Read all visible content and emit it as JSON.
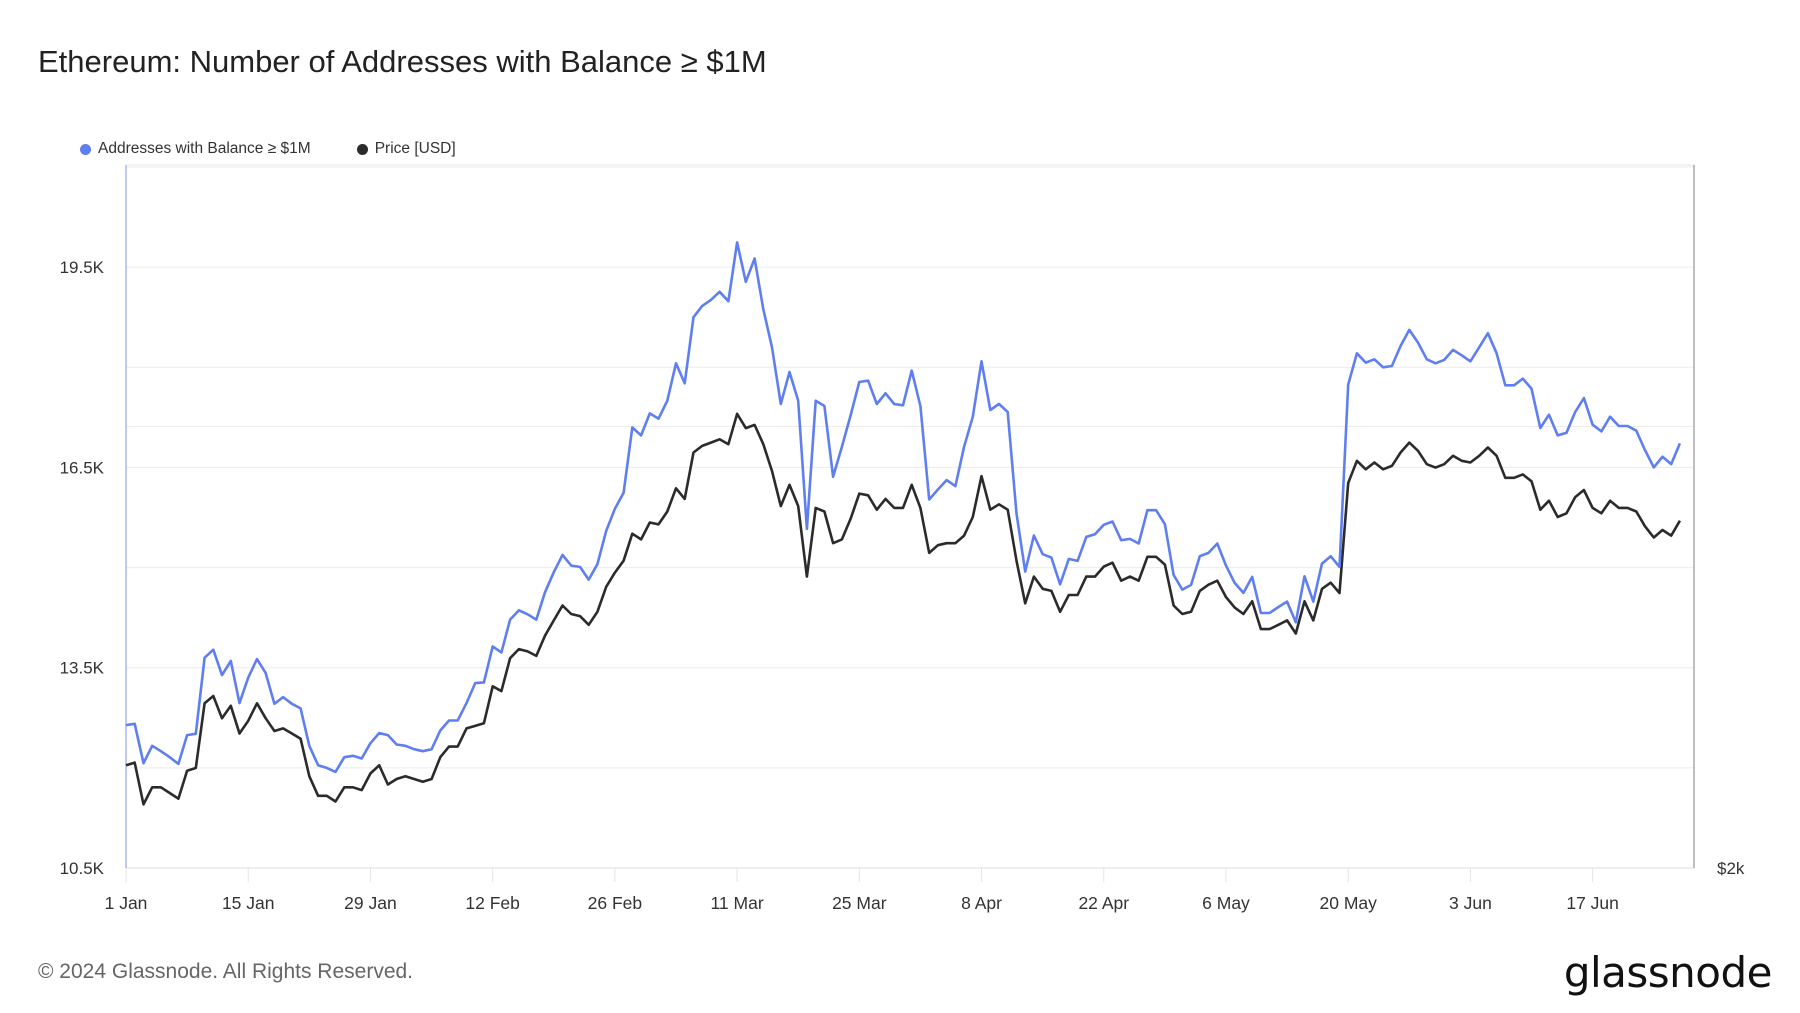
{
  "title": "Ethereum: Number of Addresses with Balance ≥ $1M",
  "footer": {
    "copyright": "© 2024 Glassnode. All Rights Reserved.",
    "logo": "glassnode"
  },
  "chart_data": {
    "type": "line",
    "title": "Ethereum: Number of Addresses with Balance ≥ $1M",
    "legend_position": "top-left",
    "grid": true,
    "x_range": [
      "2024-01-01",
      "2024-06-27"
    ],
    "x_interval": "1d",
    "x_ticks": [
      "1 Jan",
      "15 Jan",
      "29 Jan",
      "12 Feb",
      "26 Feb",
      "11 Mar",
      "25 Mar",
      "8 Apr",
      "22 Apr",
      "6 May",
      "20 May",
      "3 Jun",
      "17 Jun"
    ],
    "y_left": {
      "ticks": [
        "10.5K",
        "13.5K",
        "16.5K",
        "19.5K"
      ],
      "tick_values": [
        10500,
        13500,
        16500,
        19500
      ],
      "ylim": [
        10500,
        21030
      ],
      "scale": "linear"
    },
    "y_right": {
      "ticks": [
        "$2k"
      ],
      "tick_values": [
        2000
      ],
      "ylim": [
        2000,
        6030
      ],
      "scale": "log"
    },
    "series": [
      {
        "name": "Addresses with Balance ≥ $1M",
        "color": "#5f7ff0",
        "axis": "left",
        "values": [
          12640,
          12660,
          12070,
          12330,
          12250,
          12160,
          12060,
          12490,
          12510,
          13650,
          13770,
          13390,
          13600,
          12970,
          13350,
          13630,
          13420,
          12960,
          13060,
          12960,
          12890,
          12330,
          12040,
          12000,
          11940,
          12160,
          12180,
          12140,
          12370,
          12520,
          12490,
          12350,
          12330,
          12280,
          12250,
          12280,
          12560,
          12710,
          12710,
          12970,
          13270,
          13280,
          13820,
          13730,
          14220,
          14360,
          14300,
          14220,
          14630,
          14930,
          15190,
          15030,
          15010,
          14820,
          15050,
          15550,
          15880,
          16120,
          17100,
          16980,
          17310,
          17230,
          17500,
          18060,
          17760,
          18750,
          18920,
          19010,
          19130,
          18990,
          19870,
          19280,
          19630,
          18870,
          18300,
          17450,
          17930,
          17500,
          15580,
          17500,
          17420,
          16360,
          16810,
          17280,
          17780,
          17800,
          17450,
          17610,
          17450,
          17430,
          17950,
          17420,
          16020,
          16170,
          16310,
          16220,
          16810,
          17260,
          18090,
          17360,
          17450,
          17330,
          15810,
          14940,
          15480,
          15200,
          15150,
          14750,
          15130,
          15100,
          15460,
          15500,
          15640,
          15690,
          15410,
          15430,
          15360,
          15860,
          15860,
          15650,
          14890,
          14670,
          14740,
          15170,
          15220,
          15360,
          15030,
          14770,
          14620,
          14860,
          14320,
          14320,
          14410,
          14490,
          14180,
          14870,
          14490,
          15060,
          15170,
          15010,
          17740,
          18210,
          18070,
          18120,
          18000,
          18020,
          18320,
          18560,
          18370,
          18120,
          18060,
          18110,
          18260,
          18180,
          18090,
          18300,
          18510,
          18210,
          17730,
          17730,
          17830,
          17680,
          17090,
          17290,
          16980,
          17020,
          17330,
          17540,
          17140,
          17040,
          17260,
          17120,
          17120,
          17050,
          16760,
          16500,
          16660,
          16550,
          16860
        ]
      },
      {
        "name": "Price [USD]",
        "color": "#2b2b2b",
        "axis": "right",
        "values": [
          2350,
          2360,
          2210,
          2270,
          2270,
          2250,
          2230,
          2330,
          2340,
          2590,
          2620,
          2530,
          2580,
          2470,
          2520,
          2590,
          2530,
          2480,
          2490,
          2470,
          2450,
          2310,
          2240,
          2240,
          2220,
          2270,
          2270,
          2260,
          2320,
          2350,
          2280,
          2300,
          2310,
          2300,
          2290,
          2300,
          2380,
          2420,
          2420,
          2490,
          2500,
          2510,
          2660,
          2640,
          2780,
          2820,
          2810,
          2790,
          2880,
          2950,
          3020,
          2980,
          2970,
          2930,
          2990,
          3110,
          3180,
          3240,
          3380,
          3350,
          3440,
          3430,
          3500,
          3630,
          3570,
          3840,
          3880,
          3900,
          3920,
          3890,
          4080,
          3990,
          4010,
          3890,
          3730,
          3530,
          3650,
          3530,
          3160,
          3520,
          3500,
          3330,
          3350,
          3460,
          3600,
          3590,
          3510,
          3570,
          3520,
          3520,
          3650,
          3520,
          3280,
          3320,
          3330,
          3330,
          3370,
          3470,
          3700,
          3510,
          3540,
          3510,
          3240,
          3030,
          3160,
          3100,
          3090,
          2990,
          3070,
          3070,
          3160,
          3160,
          3210,
          3230,
          3140,
          3160,
          3140,
          3260,
          3260,
          3220,
          3020,
          2980,
          2990,
          3090,
          3120,
          3140,
          3060,
          3010,
          2980,
          3040,
          2910,
          2910,
          2930,
          2950,
          2890,
          3040,
          2950,
          3100,
          3130,
          3080,
          3660,
          3790,
          3740,
          3780,
          3740,
          3760,
          3840,
          3900,
          3850,
          3770,
          3750,
          3770,
          3820,
          3790,
          3780,
          3820,
          3870,
          3820,
          3690,
          3690,
          3710,
          3670,
          3510,
          3560,
          3470,
          3490,
          3580,
          3620,
          3520,
          3490,
          3560,
          3520,
          3520,
          3500,
          3420,
          3360,
          3400,
          3370,
          3450
        ]
      }
    ]
  }
}
